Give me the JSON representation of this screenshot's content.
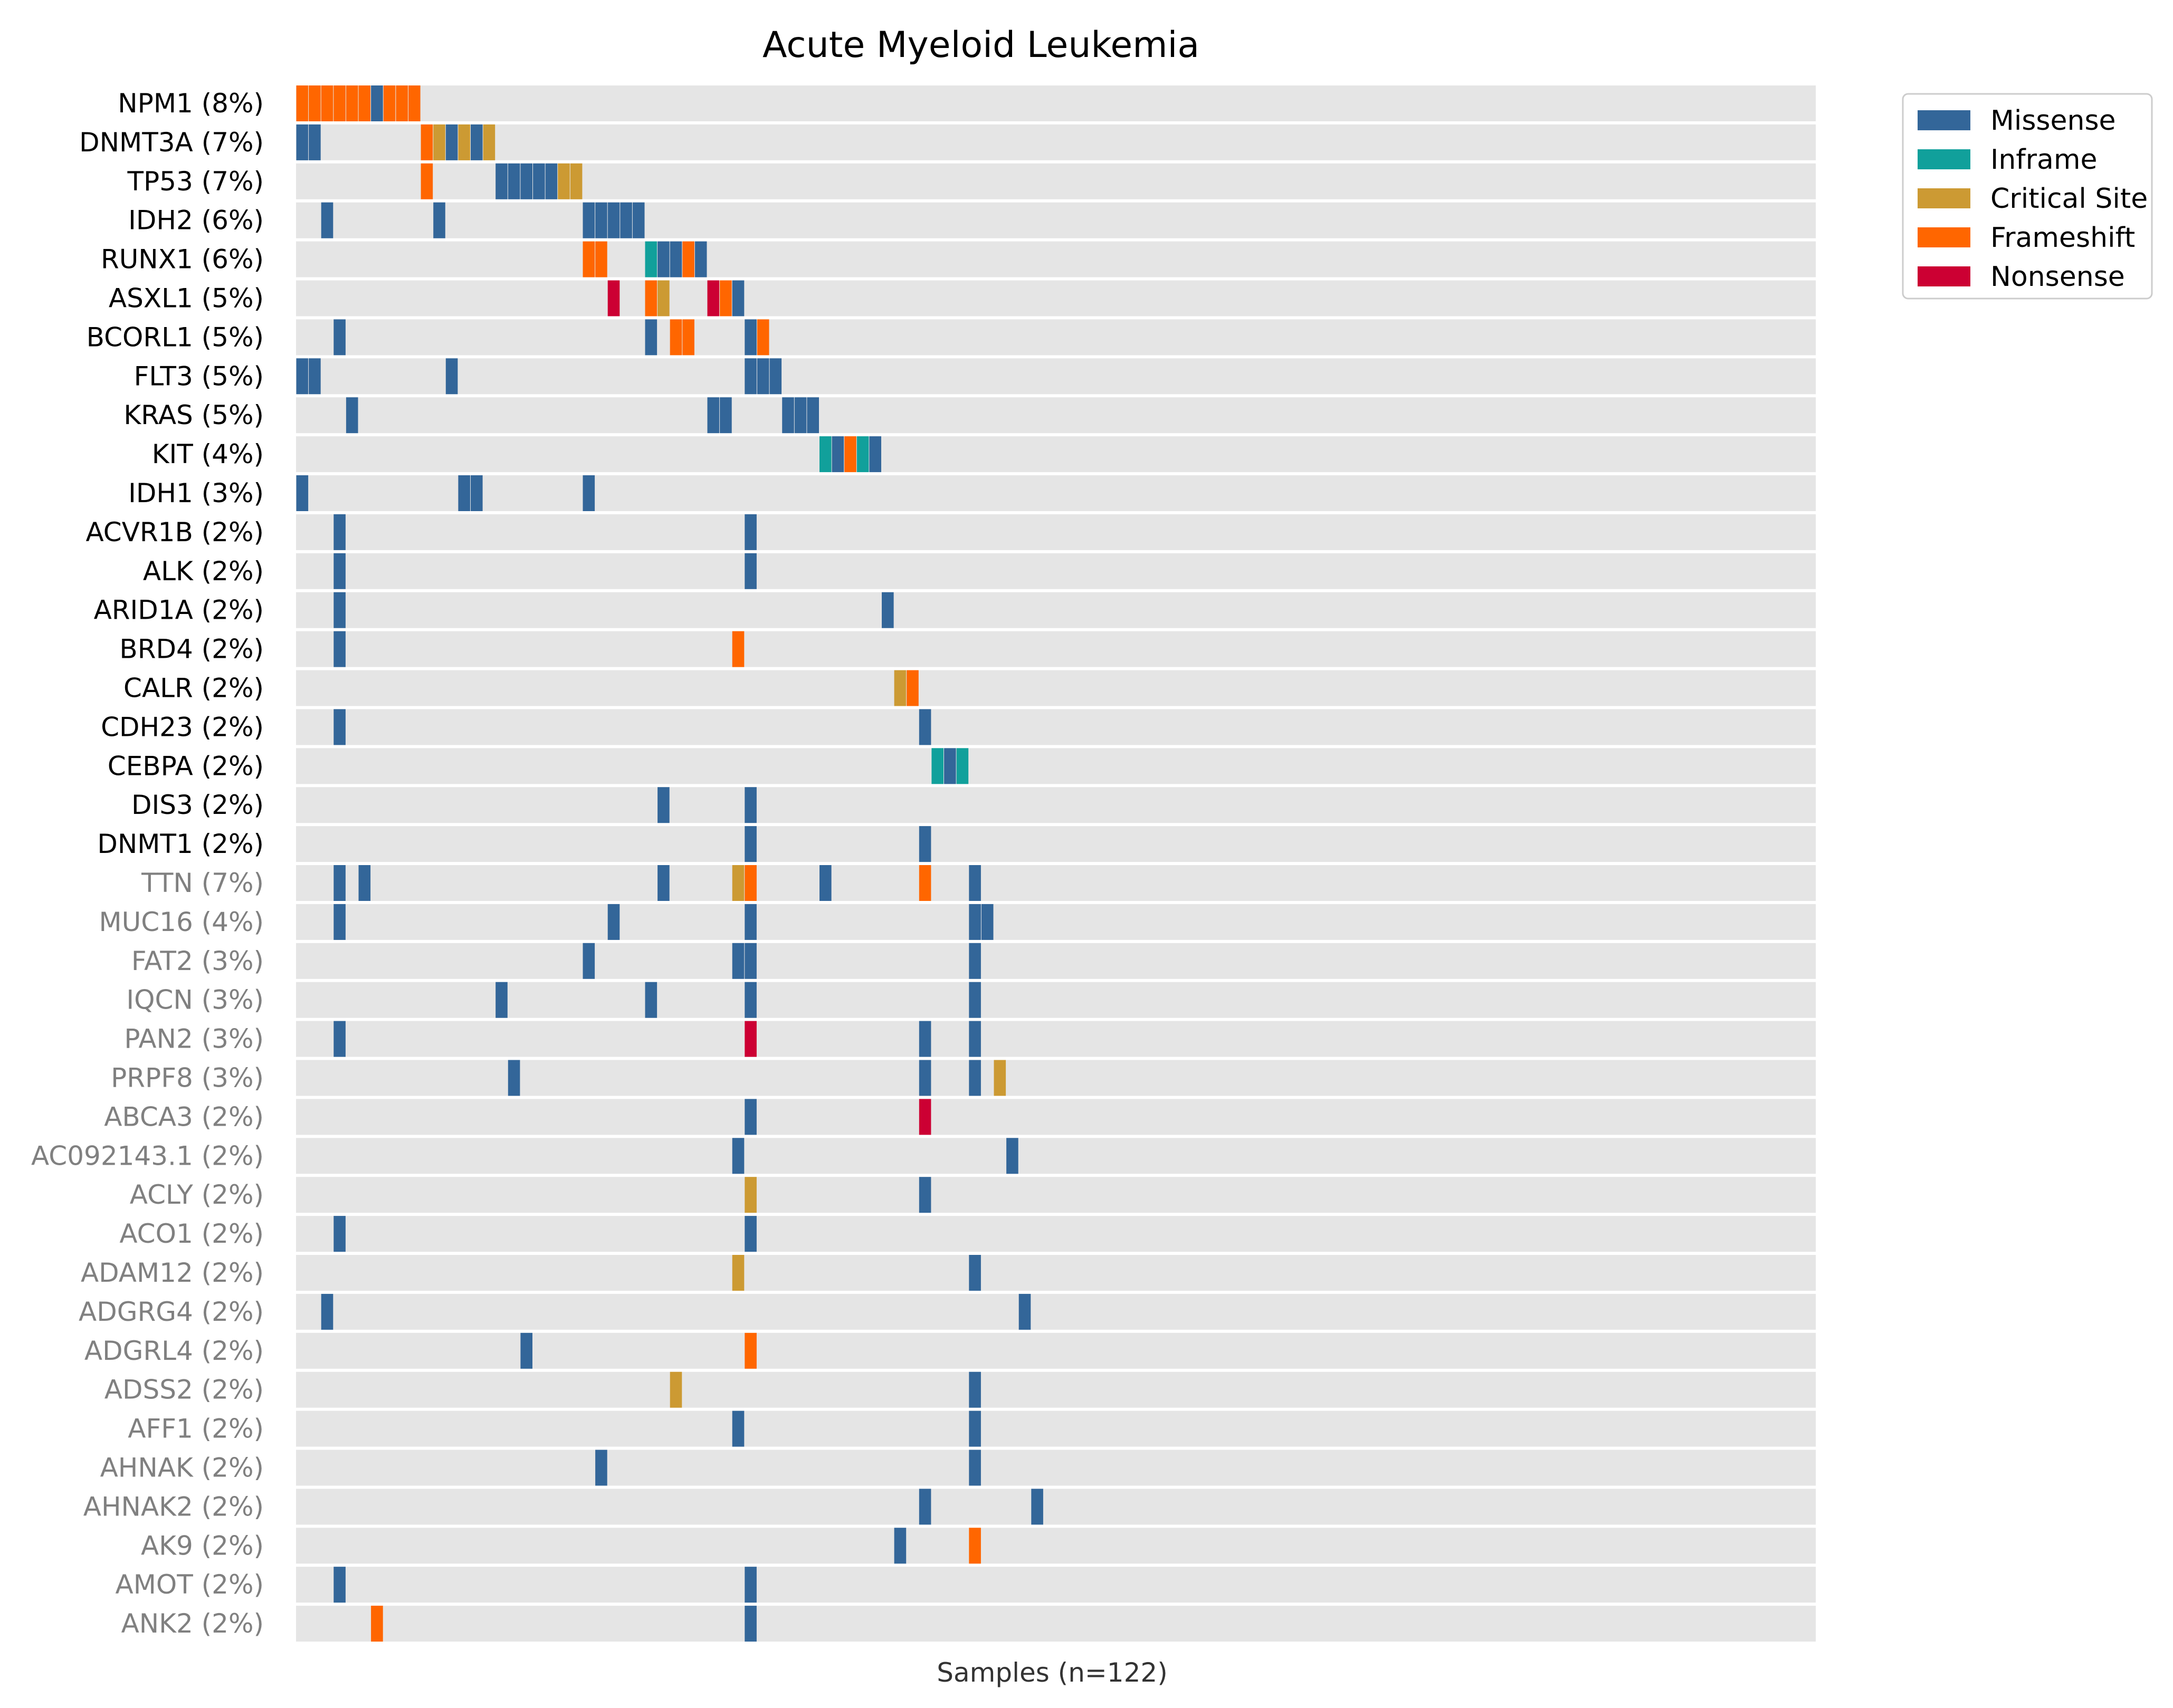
{
  "chart_data": {
    "type": "heatmap",
    "title": "Acute Myeloid Leukemia",
    "xlabel": "Samples (n=122)",
    "n_samples": 122,
    "colors": {
      "background": "#e5e5e5",
      "Missense": "#336699",
      "Inframe": "#11a09b",
      "Critical Site": "#cc9a33",
      "Frameshift": "#ff6600",
      "Nonsense": "#cc0033",
      "label_primary": "#000000",
      "label_secondary": "#808080"
    },
    "legend": {
      "position": "top-right",
      "entries": [
        "Missense",
        "Inframe",
        "Critical Site",
        "Frameshift",
        "Nonsense"
      ]
    },
    "genes": [
      {
        "label": "NPM1 (8%)",
        "group": "primary"
      },
      {
        "label": "DNMT3A (7%)",
        "group": "primary"
      },
      {
        "label": "TP53 (7%)",
        "group": "primary"
      },
      {
        "label": "IDH2 (6%)",
        "group": "primary"
      },
      {
        "label": "RUNX1 (6%)",
        "group": "primary"
      },
      {
        "label": "ASXL1 (5%)",
        "group": "primary"
      },
      {
        "label": "BCORL1 (5%)",
        "group": "primary"
      },
      {
        "label": "FLT3 (5%)",
        "group": "primary"
      },
      {
        "label": "KRAS (5%)",
        "group": "primary"
      },
      {
        "label": "KIT (4%)",
        "group": "primary"
      },
      {
        "label": "IDH1 (3%)",
        "group": "primary"
      },
      {
        "label": "ACVR1B (2%)",
        "group": "primary"
      },
      {
        "label": "ALK (2%)",
        "group": "primary"
      },
      {
        "label": "ARID1A (2%)",
        "group": "primary"
      },
      {
        "label": "BRD4 (2%)",
        "group": "primary"
      },
      {
        "label": "CALR (2%)",
        "group": "primary"
      },
      {
        "label": "CDH23 (2%)",
        "group": "primary"
      },
      {
        "label": "CEBPA (2%)",
        "group": "primary"
      },
      {
        "label": "DIS3 (2%)",
        "group": "primary"
      },
      {
        "label": "DNMT1 (2%)",
        "group": "primary"
      },
      {
        "label": "TTN (7%)",
        "group": "secondary"
      },
      {
        "label": "MUC16 (4%)",
        "group": "secondary"
      },
      {
        "label": "FAT2 (3%)",
        "group": "secondary"
      },
      {
        "label": "IQCN (3%)",
        "group": "secondary"
      },
      {
        "label": "PAN2 (3%)",
        "group": "secondary"
      },
      {
        "label": "PRPF8 (3%)",
        "group": "secondary"
      },
      {
        "label": "ABCA3 (2%)",
        "group": "secondary"
      },
      {
        "label": "AC092143.1 (2%)",
        "group": "secondary"
      },
      {
        "label": "ACLY (2%)",
        "group": "secondary"
      },
      {
        "label": "ACO1 (2%)",
        "group": "secondary"
      },
      {
        "label": "ADAM12 (2%)",
        "group": "secondary"
      },
      {
        "label": "ADGRG4 (2%)",
        "group": "secondary"
      },
      {
        "label": "ADGRL4 (2%)",
        "group": "secondary"
      },
      {
        "label": "ADSS2 (2%)",
        "group": "secondary"
      },
      {
        "label": "AFF1 (2%)",
        "group": "secondary"
      },
      {
        "label": "AHNAK (2%)",
        "group": "secondary"
      },
      {
        "label": "AHNAK2 (2%)",
        "group": "secondary"
      },
      {
        "label": "AK9 (2%)",
        "group": "secondary"
      },
      {
        "label": "AMOT (2%)",
        "group": "secondary"
      },
      {
        "label": "ANK2 (2%)",
        "group": "secondary"
      }
    ],
    "mutations": [
      [
        [
          0,
          "Frameshift"
        ],
        [
          1,
          "Frameshift"
        ],
        [
          2,
          "Frameshift"
        ],
        [
          3,
          "Frameshift"
        ],
        [
          4,
          "Frameshift"
        ],
        [
          5,
          "Frameshift"
        ],
        [
          6,
          "Missense"
        ],
        [
          7,
          "Frameshift"
        ],
        [
          8,
          "Frameshift"
        ],
        [
          9,
          "Frameshift"
        ]
      ],
      [
        [
          0,
          "Missense"
        ],
        [
          1,
          "Missense"
        ],
        [
          10,
          "Frameshift"
        ],
        [
          11,
          "Critical Site"
        ],
        [
          12,
          "Missense"
        ],
        [
          13,
          "Critical Site"
        ],
        [
          14,
          "Missense"
        ],
        [
          15,
          "Critical Site"
        ]
      ],
      [
        [
          10,
          "Frameshift"
        ],
        [
          16,
          "Missense"
        ],
        [
          17,
          "Missense"
        ],
        [
          18,
          "Missense"
        ],
        [
          19,
          "Missense"
        ],
        [
          20,
          "Missense"
        ],
        [
          21,
          "Critical Site"
        ],
        [
          22,
          "Critical Site"
        ]
      ],
      [
        [
          2,
          "Missense"
        ],
        [
          11,
          "Missense"
        ],
        [
          23,
          "Missense"
        ],
        [
          24,
          "Missense"
        ],
        [
          25,
          "Missense"
        ],
        [
          26,
          "Missense"
        ],
        [
          27,
          "Missense"
        ]
      ],
      [
        [
          23,
          "Frameshift"
        ],
        [
          24,
          "Frameshift"
        ],
        [
          28,
          "Inframe"
        ],
        [
          29,
          "Missense"
        ],
        [
          30,
          "Missense"
        ],
        [
          31,
          "Frameshift"
        ],
        [
          32,
          "Missense"
        ]
      ],
      [
        [
          25,
          "Nonsense"
        ],
        [
          28,
          "Frameshift"
        ],
        [
          29,
          "Critical Site"
        ],
        [
          33,
          "Nonsense"
        ],
        [
          34,
          "Frameshift"
        ],
        [
          35,
          "Missense"
        ]
      ],
      [
        [
          3,
          "Missense"
        ],
        [
          28,
          "Missense"
        ],
        [
          30,
          "Frameshift"
        ],
        [
          31,
          "Frameshift"
        ],
        [
          36,
          "Missense"
        ],
        [
          37,
          "Frameshift"
        ]
      ],
      [
        [
          0,
          "Missense"
        ],
        [
          1,
          "Missense"
        ],
        [
          12,
          "Missense"
        ],
        [
          36,
          "Missense"
        ],
        [
          37,
          "Missense"
        ],
        [
          38,
          "Missense"
        ]
      ],
      [
        [
          4,
          "Missense"
        ],
        [
          33,
          "Missense"
        ],
        [
          34,
          "Missense"
        ],
        [
          39,
          "Missense"
        ],
        [
          40,
          "Missense"
        ],
        [
          41,
          "Missense"
        ]
      ],
      [
        [
          42,
          "Inframe"
        ],
        [
          43,
          "Missense"
        ],
        [
          44,
          "Frameshift"
        ],
        [
          45,
          "Inframe"
        ],
        [
          46,
          "Missense"
        ]
      ],
      [
        [
          0,
          "Missense"
        ],
        [
          13,
          "Missense"
        ],
        [
          14,
          "Missense"
        ],
        [
          23,
          "Missense"
        ]
      ],
      [
        [
          3,
          "Missense"
        ],
        [
          36,
          "Missense"
        ]
      ],
      [
        [
          3,
          "Missense"
        ],
        [
          36,
          "Missense"
        ]
      ],
      [
        [
          3,
          "Missense"
        ],
        [
          47,
          "Missense"
        ]
      ],
      [
        [
          3,
          "Missense"
        ],
        [
          35,
          "Frameshift"
        ]
      ],
      [
        [
          48,
          "Critical Site"
        ],
        [
          49,
          "Frameshift"
        ]
      ],
      [
        [
          3,
          "Missense"
        ],
        [
          50,
          "Missense"
        ]
      ],
      [
        [
          51,
          "Inframe"
        ],
        [
          52,
          "Missense"
        ],
        [
          53,
          "Inframe"
        ]
      ],
      [
        [
          29,
          "Missense"
        ],
        [
          36,
          "Missense"
        ]
      ],
      [
        [
          36,
          "Missense"
        ],
        [
          50,
          "Missense"
        ]
      ],
      [
        [
          3,
          "Missense"
        ],
        [
          5,
          "Missense"
        ],
        [
          29,
          "Missense"
        ],
        [
          35,
          "Critical Site"
        ],
        [
          36,
          "Frameshift"
        ],
        [
          42,
          "Missense"
        ],
        [
          50,
          "Frameshift"
        ],
        [
          54,
          "Missense"
        ]
      ],
      [
        [
          3,
          "Missense"
        ],
        [
          25,
          "Missense"
        ],
        [
          36,
          "Missense"
        ],
        [
          54,
          "Missense"
        ],
        [
          55,
          "Missense"
        ]
      ],
      [
        [
          23,
          "Missense"
        ],
        [
          35,
          "Missense"
        ],
        [
          36,
          "Missense"
        ],
        [
          54,
          "Missense"
        ]
      ],
      [
        [
          16,
          "Missense"
        ],
        [
          28,
          "Missense"
        ],
        [
          36,
          "Missense"
        ],
        [
          54,
          "Missense"
        ]
      ],
      [
        [
          3,
          "Missense"
        ],
        [
          36,
          "Nonsense"
        ],
        [
          50,
          "Missense"
        ],
        [
          54,
          "Missense"
        ]
      ],
      [
        [
          17,
          "Missense"
        ],
        [
          50,
          "Missense"
        ],
        [
          54,
          "Missense"
        ],
        [
          56,
          "Critical Site"
        ]
      ],
      [
        [
          36,
          "Missense"
        ],
        [
          50,
          "Nonsense"
        ]
      ],
      [
        [
          35,
          "Missense"
        ],
        [
          57,
          "Missense"
        ]
      ],
      [
        [
          36,
          "Critical Site"
        ],
        [
          50,
          "Missense"
        ]
      ],
      [
        [
          3,
          "Missense"
        ],
        [
          36,
          "Missense"
        ]
      ],
      [
        [
          35,
          "Critical Site"
        ],
        [
          54,
          "Missense"
        ]
      ],
      [
        [
          2,
          "Missense"
        ],
        [
          58,
          "Missense"
        ]
      ],
      [
        [
          18,
          "Missense"
        ],
        [
          36,
          "Frameshift"
        ]
      ],
      [
        [
          30,
          "Critical Site"
        ],
        [
          54,
          "Missense"
        ]
      ],
      [
        [
          35,
          "Missense"
        ],
        [
          54,
          "Missense"
        ]
      ],
      [
        [
          24,
          "Missense"
        ],
        [
          54,
          "Missense"
        ]
      ],
      [
        [
          50,
          "Missense"
        ],
        [
          59,
          "Missense"
        ]
      ],
      [
        [
          48,
          "Missense"
        ],
        [
          54,
          "Frameshift"
        ]
      ],
      [
        [
          3,
          "Missense"
        ],
        [
          36,
          "Missense"
        ]
      ],
      [
        [
          6,
          "Frameshift"
        ],
        [
          36,
          "Missense"
        ]
      ]
    ]
  }
}
